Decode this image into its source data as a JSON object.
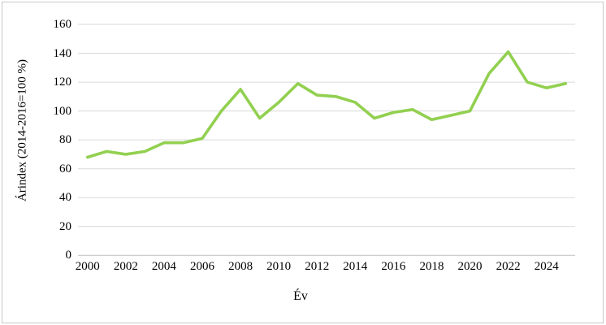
{
  "window": {
    "background_color": "#ffffff",
    "border_color": "#c8c8c8"
  },
  "chart_data": {
    "type": "line",
    "title": "",
    "xlabel": "Év",
    "ylabel": "Árindex (2014-2016=100 %)",
    "x": [
      2000,
      2001,
      2002,
      2003,
      2004,
      2005,
      2006,
      2007,
      2008,
      2009,
      2010,
      2011,
      2012,
      2013,
      2014,
      2015,
      2016,
      2017,
      2018,
      2019,
      2020,
      2021,
      2022,
      2023,
      2024,
      2025
    ],
    "series": [
      {
        "name": "Árindex",
        "color": "#92d050",
        "values": [
          68,
          72,
          70,
          72,
          78,
          78,
          81,
          100,
          115,
          95,
          106,
          119,
          111,
          110,
          106,
          95,
          99,
          101,
          94,
          97,
          100,
          126,
          141,
          120,
          116,
          119
        ]
      }
    ],
    "ylim": [
      0,
      160
    ],
    "yticks": [
      0,
      20,
      40,
      60,
      80,
      100,
      120,
      140,
      160
    ],
    "xtick_labels": [
      "2000",
      "2002",
      "2004",
      "2006",
      "2008",
      "2010",
      "2012",
      "2014",
      "2016",
      "2018",
      "2020",
      "2022",
      "2024"
    ],
    "xtick_step_years": 2,
    "grid": "horizontal",
    "gridline_color": "#d9d9d9",
    "axis_line_color": "#bfbfbf",
    "legend": "none"
  }
}
